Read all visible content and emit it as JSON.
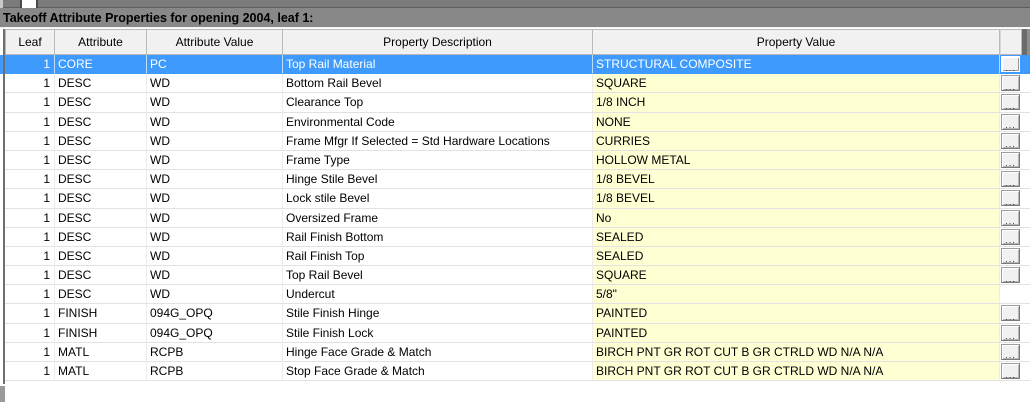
{
  "title": "Takeoff Attribute Properties for opening 2004, leaf 1:",
  "grid": {
    "columns": [
      "Leaf",
      "Attribute",
      "Attribute Value",
      "Property Description",
      "Property Value"
    ],
    "ellipsis_button_label": "...",
    "rows": [
      {
        "leaf": "1",
        "attribute": "CORE",
        "attribute_value": "PC",
        "description": "Top Rail Material",
        "value": "STRUCTURAL COMPOSITE",
        "selected": true,
        "has_button": true
      },
      {
        "leaf": "1",
        "attribute": "DESC",
        "attribute_value": "WD",
        "description": "Bottom Rail Bevel",
        "value": "SQUARE",
        "selected": false,
        "has_button": true
      },
      {
        "leaf": "1",
        "attribute": "DESC",
        "attribute_value": "WD",
        "description": "Clearance Top",
        "value": "1/8 INCH",
        "selected": false,
        "has_button": true
      },
      {
        "leaf": "1",
        "attribute": "DESC",
        "attribute_value": "WD",
        "description": "Environmental Code",
        "value": "NONE",
        "selected": false,
        "has_button": true
      },
      {
        "leaf": "1",
        "attribute": "DESC",
        "attribute_value": "WD",
        "description": "Frame Mfgr If Selected = Std Hardware Locations",
        "value": "CURRIES",
        "selected": false,
        "has_button": true
      },
      {
        "leaf": "1",
        "attribute": "DESC",
        "attribute_value": "WD",
        "description": "Frame Type",
        "value": "HOLLOW METAL",
        "selected": false,
        "has_button": true
      },
      {
        "leaf": "1",
        "attribute": "DESC",
        "attribute_value": "WD",
        "description": "Hinge Stile Bevel",
        "value": "1/8 BEVEL",
        "selected": false,
        "has_button": true
      },
      {
        "leaf": "1",
        "attribute": "DESC",
        "attribute_value": "WD",
        "description": "Lock stile Bevel",
        "value": "1/8 BEVEL",
        "selected": false,
        "has_button": true
      },
      {
        "leaf": "1",
        "attribute": "DESC",
        "attribute_value": "WD",
        "description": "Oversized Frame",
        "value": "No",
        "selected": false,
        "has_button": true
      },
      {
        "leaf": "1",
        "attribute": "DESC",
        "attribute_value": "WD",
        "description": "Rail Finish Bottom",
        "value": "SEALED",
        "selected": false,
        "has_button": true
      },
      {
        "leaf": "1",
        "attribute": "DESC",
        "attribute_value": "WD",
        "description": "Rail Finish Top",
        "value": "SEALED",
        "selected": false,
        "has_button": true
      },
      {
        "leaf": "1",
        "attribute": "DESC",
        "attribute_value": "WD",
        "description": "Top Rail Bevel",
        "value": "SQUARE",
        "selected": false,
        "has_button": true
      },
      {
        "leaf": "1",
        "attribute": "DESC",
        "attribute_value": "WD",
        "description": "Undercut",
        "value": "5/8\"",
        "selected": false,
        "has_button": false
      },
      {
        "leaf": "1",
        "attribute": "FINISH",
        "attribute_value": "094G_OPQ",
        "description": "Stile Finish Hinge",
        "value": "PAINTED",
        "selected": false,
        "has_button": true
      },
      {
        "leaf": "1",
        "attribute": "FINISH",
        "attribute_value": "094G_OPQ",
        "description": "Stile Finish Lock",
        "value": "PAINTED",
        "selected": false,
        "has_button": true
      },
      {
        "leaf": "1",
        "attribute": "MATL",
        "attribute_value": "RCPB",
        "description": "Hinge Face Grade & Match",
        "value": "BIRCH PNT GR ROT CUT B GR CTRLD WD N/A N/A",
        "selected": false,
        "has_button": true
      },
      {
        "leaf": "1",
        "attribute": "MATL",
        "attribute_value": "RCPB",
        "description": "Stop Face Grade & Match",
        "value": "BIRCH PNT GR ROT CUT B GR CTRLD WD N/A N/A",
        "selected": false,
        "has_button": true
      }
    ]
  },
  "colors": {
    "selection_blue": "#3e9bfd",
    "property_value_yellow": "#ffffd4",
    "title_bar_gray": "#888888",
    "header_gray": "#f1f1f1"
  }
}
